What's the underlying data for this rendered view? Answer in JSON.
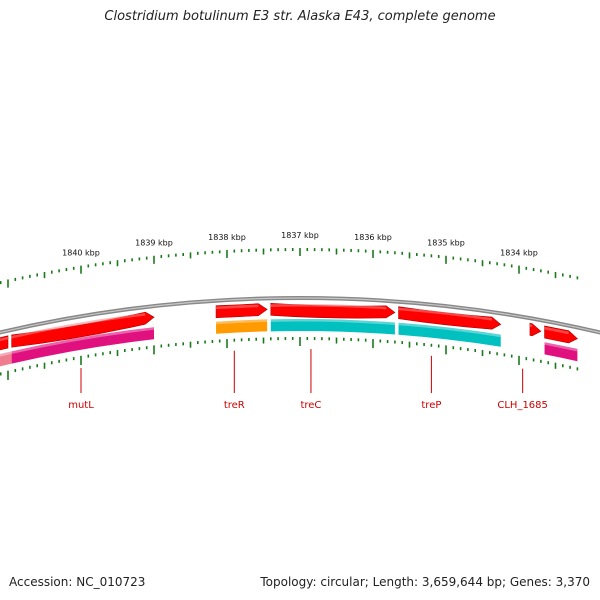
{
  "title": "Clostridium botulinum E3 str. Alaska E43, complete genome",
  "footer": {
    "accession": "Accession: NC_010723",
    "summary": "Topology: circular; Length: 3,659,644 bp; Genes: 3,370"
  },
  "colors": {
    "backbone": "#888888",
    "tick": "#1a7a1a",
    "forward_cds": "#ff0000",
    "gene_label": "#cc0000",
    "cyan_feature": "#00c0c0",
    "orange_feature": "#ff9a00",
    "magenta_feature": "#e0107f"
  },
  "chart_data": {
    "type": "genome-map",
    "position_unit": "kbp",
    "tick_labels": [
      "1840 kbp",
      "1839 kbp",
      "1838 kbp",
      "1837 kbp",
      "1836 kbp",
      "1835 kbp",
      "1834 kbp"
    ],
    "tick_positions_kbp": [
      1840,
      1839,
      1838,
      1837,
      1836,
      1835,
      1834
    ],
    "visible_range_kbp": [
      1833.2,
      1841.3
    ],
    "strand_track": [
      {
        "start_kbp": 1841.3,
        "end_kbp": 1841.0,
        "color": "#ff0000"
      },
      {
        "start_kbp": 1840.95,
        "end_kbp": 1839.0,
        "color": "#ff0000",
        "arrow": true
      },
      {
        "start_kbp": 1838.15,
        "end_kbp": 1837.45,
        "color": "#ff0000",
        "arrow": true
      },
      {
        "start_kbp": 1837.4,
        "end_kbp": 1835.7,
        "color": "#ff0000",
        "arrow": true
      },
      {
        "start_kbp": 1835.65,
        "end_kbp": 1834.25,
        "color": "#ff0000",
        "arrow": true
      },
      {
        "start_kbp": 1833.85,
        "end_kbp": 1833.7,
        "color": "#ff0000",
        "arrow": true
      },
      {
        "start_kbp": 1833.65,
        "end_kbp": 1833.2,
        "color": "#ff0000",
        "arrow": true
      }
    ],
    "feature_track": [
      {
        "start_kbp": 1841.3,
        "end_kbp": 1840.95,
        "color": "#ef7d8f"
      },
      {
        "start_kbp": 1840.95,
        "end_kbp": 1839.0,
        "color": "#e0107f"
      },
      {
        "start_kbp": 1838.15,
        "end_kbp": 1837.45,
        "color": "#ff9a00"
      },
      {
        "start_kbp": 1837.4,
        "end_kbp": 1835.7,
        "color": "#00c0c0"
      },
      {
        "start_kbp": 1835.65,
        "end_kbp": 1834.25,
        "color": "#00c0c0"
      },
      {
        "start_kbp": 1833.65,
        "end_kbp": 1833.2,
        "color": "#e0107f"
      }
    ],
    "genes": [
      {
        "name": "mutL",
        "position_kbp": 1840.0
      },
      {
        "name": "treR",
        "position_kbp": 1837.9
      },
      {
        "name": "treC",
        "position_kbp": 1836.85
      },
      {
        "name": "treP",
        "position_kbp": 1835.2
      },
      {
        "name": "CLH_1685",
        "position_kbp": 1833.95
      }
    ]
  }
}
